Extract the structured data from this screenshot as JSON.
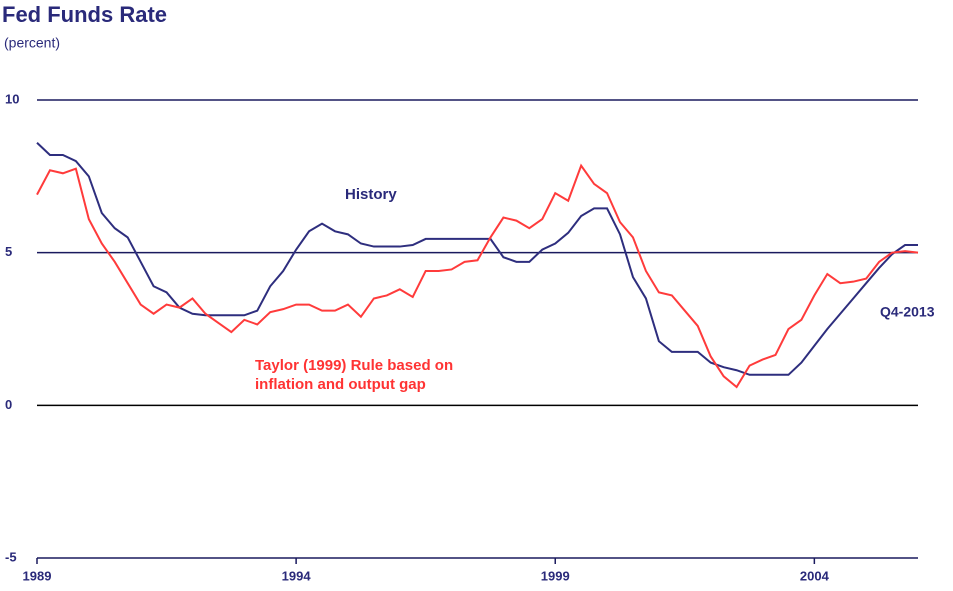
{
  "chart_data": {
    "type": "line",
    "title": "Fed Funds Rate",
    "subtitle": "(percent)",
    "annotations": {
      "history": "History",
      "taylor": [
        "Taylor (1999) Rule based on",
        "inflation and output gap"
      ],
      "end": "Q4-2013"
    },
    "x": [
      1989,
      1989.25,
      1989.5,
      1989.75,
      1990,
      1990.25,
      1990.5,
      1990.75,
      1991,
      1991.25,
      1991.5,
      1991.75,
      1992,
      1992.25,
      1992.5,
      1992.75,
      1993,
      1993.25,
      1993.5,
      1993.75,
      1994,
      1994.25,
      1994.5,
      1994.75,
      1995,
      1995.25,
      1995.5,
      1995.75,
      1996,
      1996.25,
      1996.5,
      1996.75,
      1997,
      1997.25,
      1997.5,
      1997.75,
      1998,
      1998.25,
      1998.5,
      1998.75,
      1999,
      1999.25,
      1999.5,
      1999.75,
      2000,
      2000.25,
      2000.5,
      2000.75,
      2001,
      2001.25,
      2001.5,
      2001.75,
      2002,
      2002.25,
      2002.5,
      2002.75,
      2003,
      2003.25,
      2003.5,
      2003.75,
      2004,
      2004.25,
      2004.5,
      2004.75,
      2005,
      2005.25,
      2005.5,
      2005.75,
      2006
    ],
    "series": [
      {
        "name": "History",
        "color": "#2e2e7e",
        "values": [
          8.6,
          8.2,
          8.2,
          8.0,
          7.5,
          6.3,
          5.8,
          5.5,
          4.7,
          3.9,
          3.7,
          3.2,
          3.0,
          2.95,
          2.95,
          2.95,
          2.95,
          3.1,
          3.9,
          4.4,
          5.1,
          5.7,
          5.95,
          5.7,
          5.6,
          5.3,
          5.2,
          5.2,
          5.2,
          5.25,
          5.45,
          5.45,
          5.45,
          5.45,
          5.45,
          5.45,
          4.85,
          4.7,
          4.7,
          5.1,
          5.3,
          5.65,
          6.2,
          6.45,
          6.45,
          5.6,
          4.2,
          3.5,
          2.1,
          1.75,
          1.75,
          1.75,
          1.4,
          1.25,
          1.15,
          1.0,
          1.0,
          1.0,
          1.0,
          1.4,
          1.95,
          2.5,
          3.0,
          3.5,
          4.0,
          4.5,
          4.95,
          5.25,
          5.25
        ]
      },
      {
        "name": "Taylor (1999) Rule",
        "color": "#ff3b3b",
        "values": [
          6.9,
          7.7,
          7.6,
          7.75,
          6.1,
          5.3,
          4.7,
          4.0,
          3.3,
          3.0,
          3.3,
          3.2,
          3.5,
          3.0,
          2.7,
          2.4,
          2.8,
          2.65,
          3.05,
          3.15,
          3.3,
          3.3,
          3.1,
          3.1,
          3.3,
          2.9,
          3.5,
          3.6,
          3.8,
          3.55,
          4.4,
          4.4,
          4.45,
          4.7,
          4.75,
          5.5,
          6.15,
          6.05,
          5.8,
          6.1,
          6.95,
          6.7,
          7.85,
          7.25,
          6.95,
          6.0,
          5.5,
          4.4,
          3.7,
          3.6,
          3.1,
          2.6,
          1.6,
          0.95,
          0.6,
          1.3,
          1.5,
          1.65,
          2.5,
          2.8,
          3.6,
          4.3,
          4.0,
          4.05,
          4.15,
          4.7,
          5.0,
          5.05,
          5.0
        ]
      }
    ],
    "xlim": [
      1989,
      2006
    ],
    "xticks": [
      1989,
      1994,
      1999,
      2004
    ],
    "ylim": [
      -5,
      10
    ],
    "yticks": [
      -5,
      0,
      5,
      10
    ],
    "grid": true
  }
}
